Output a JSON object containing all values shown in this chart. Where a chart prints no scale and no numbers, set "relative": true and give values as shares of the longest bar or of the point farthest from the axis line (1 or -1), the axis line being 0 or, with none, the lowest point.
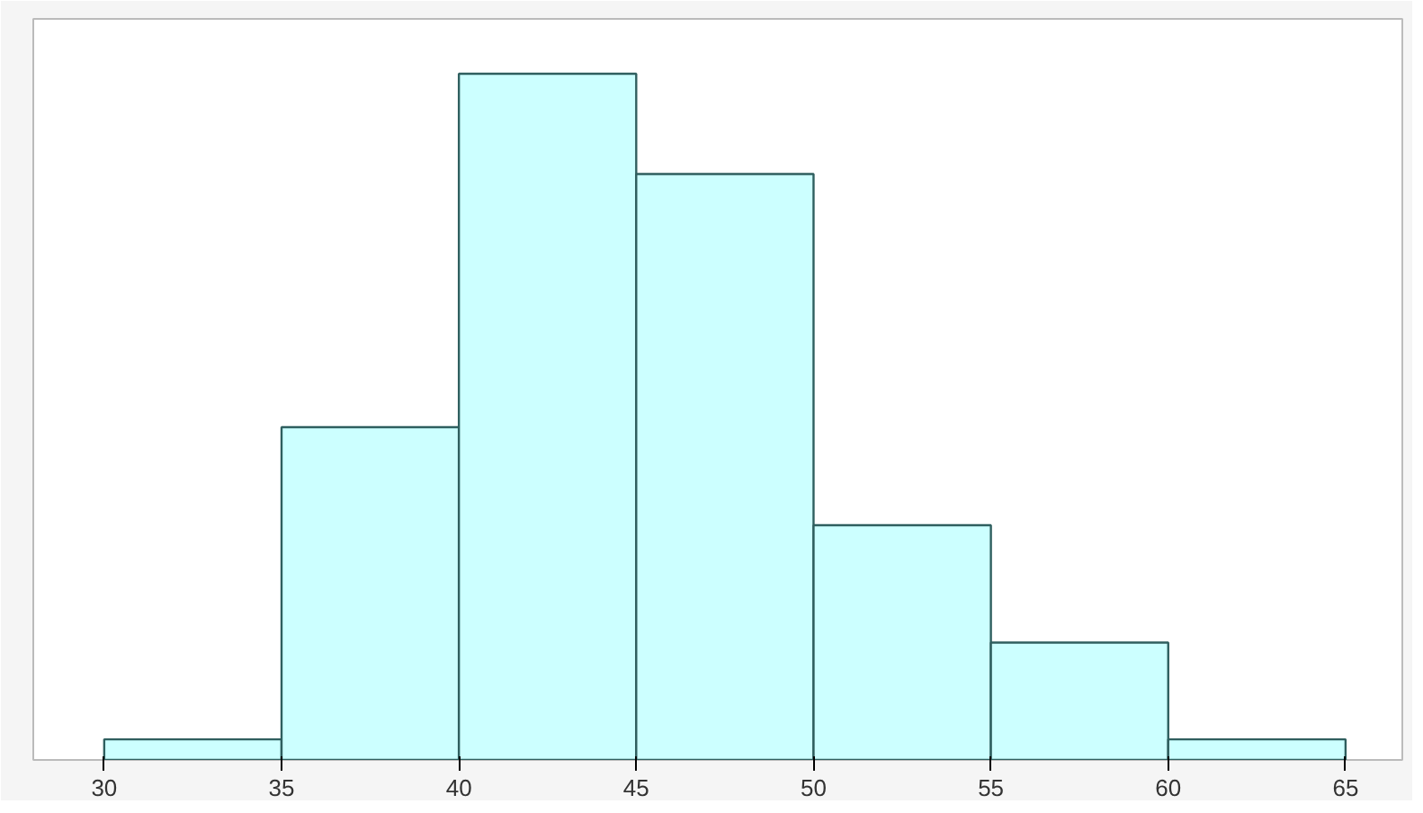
{
  "chart_data": {
    "type": "bar",
    "relative": true,
    "x": [
      32.5,
      37.5,
      42.5,
      47.5,
      52.5,
      57.5,
      62.5
    ],
    "values": [
      0.03,
      0.485,
      1,
      0.854,
      0.342,
      0.171,
      0.03
    ],
    "color": "#ccffff",
    "xlim": [
      28,
      66.6
    ],
    "xticks": [
      30,
      35,
      40,
      45,
      50,
      55,
      60,
      65
    ],
    "grid": false
  }
}
